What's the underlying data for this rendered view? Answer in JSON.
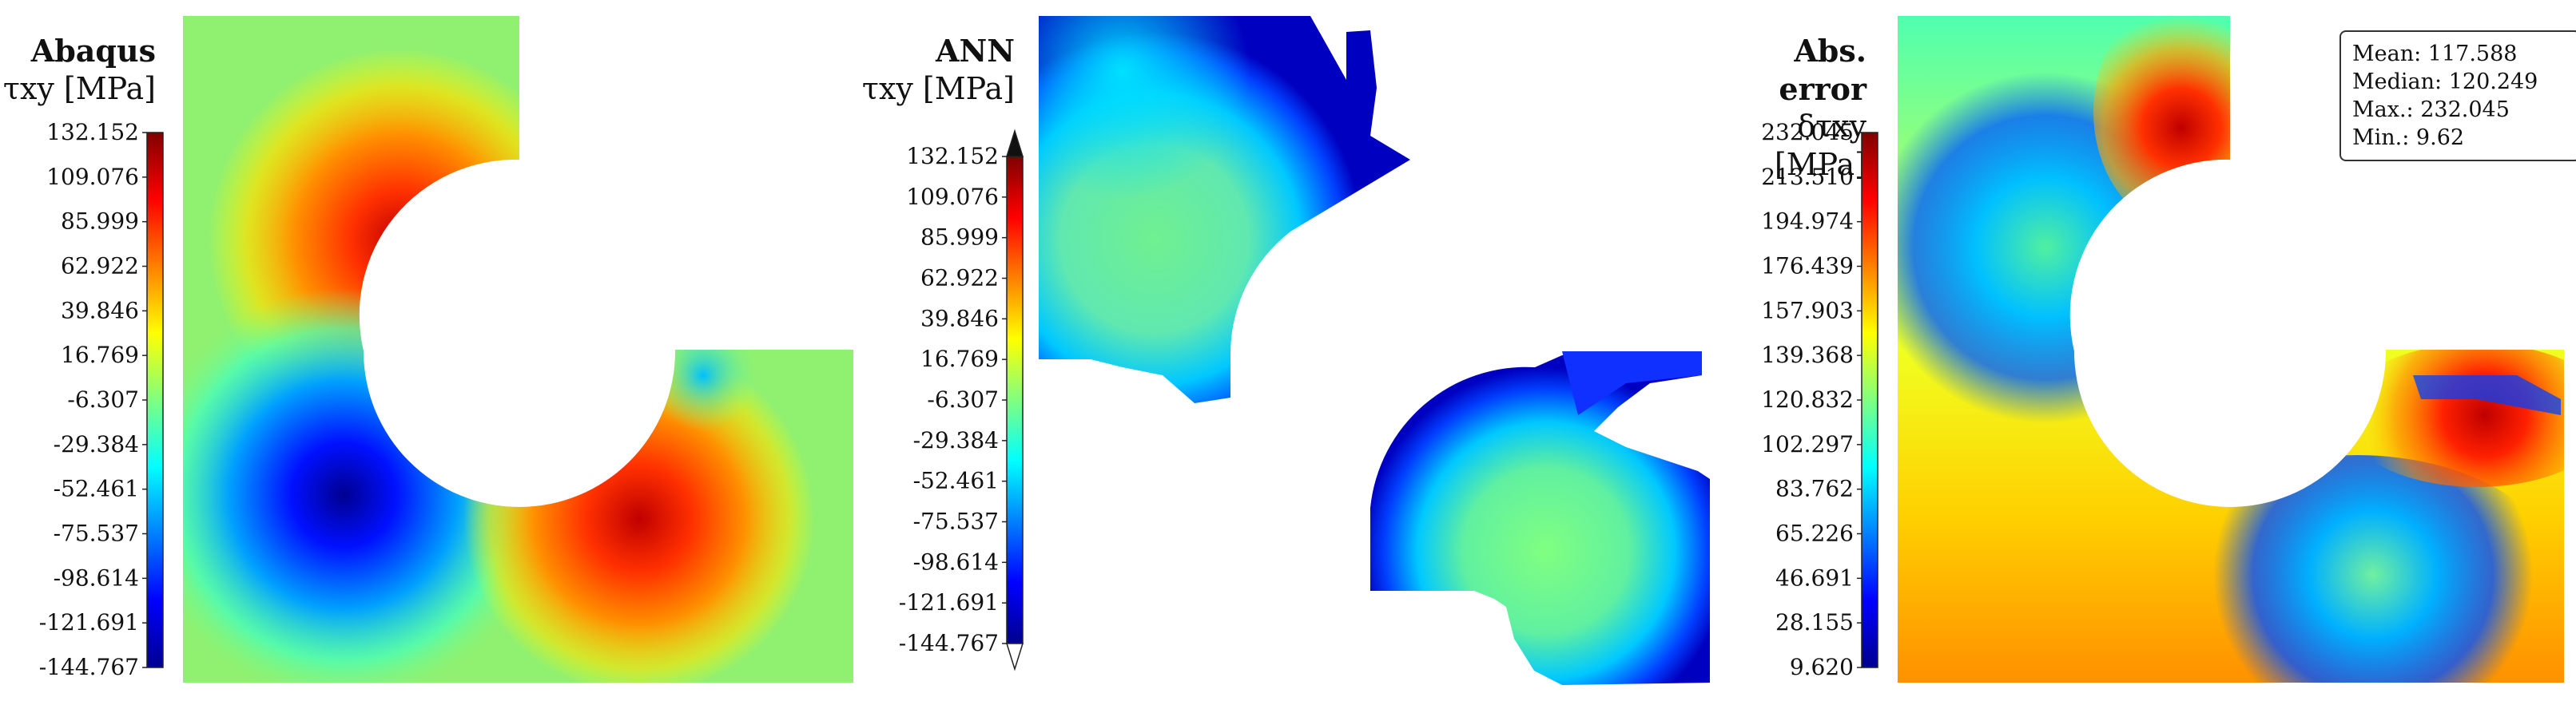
{
  "colors": {
    "jet": [
      "#00008f",
      "#0000ff",
      "#0080ff",
      "#00ffff",
      "#80ff80",
      "#ffff00",
      "#ff8000",
      "#ff0000",
      "#800000"
    ],
    "tip_top": "#111111",
    "tip_bottom": "#ffffff",
    "void": "#ffffff"
  },
  "chart_data": [
    {
      "type": "heatmap",
      "title": "Abaqus",
      "subtitle": "τxy [MPa]",
      "colorbar": {
        "ticks": [
          "132.152",
          "109.076",
          "85.999",
          "62.922",
          "39.846",
          "16.769",
          "-6.307",
          "-29.384",
          "-52.461",
          "-75.537",
          "-98.614",
          "-121.691",
          "-144.767"
        ],
        "min": -144.767,
        "max": 132.152,
        "extend": "none"
      },
      "field": "shear-stress",
      "dataset": "abaqus"
    },
    {
      "type": "heatmap",
      "title": "ANN",
      "subtitle": "τxy [MPa]",
      "colorbar": {
        "ticks": [
          "132.152",
          "109.076",
          "85.999",
          "62.922",
          "39.846",
          "16.769",
          "-6.307",
          "-29.384",
          "-52.461",
          "-75.537",
          "-98.614",
          "-121.691",
          "-144.767"
        ],
        "min": -144.767,
        "max": 132.152,
        "extend": "both"
      },
      "field": "shear-stress",
      "dataset": "ann"
    },
    {
      "type": "heatmap",
      "title": "Abs. error",
      "subtitle": "δτxy [MPa]",
      "colorbar": {
        "ticks": [
          "232.045",
          "213.510",
          "194.974",
          "176.439",
          "157.903",
          "139.368",
          "120.832",
          "102.297",
          "83.762",
          "65.226",
          "46.691",
          "28.155",
          "9.620"
        ],
        "min": 9.62,
        "max": 232.045,
        "extend": "none"
      },
      "field": "absolute-error",
      "dataset": "error",
      "stats": {
        "mean": "Mean: 117.588",
        "median": "Median: 120.249",
        "max": "Max.: 232.045",
        "min": "Min.: 9.62"
      }
    }
  ]
}
